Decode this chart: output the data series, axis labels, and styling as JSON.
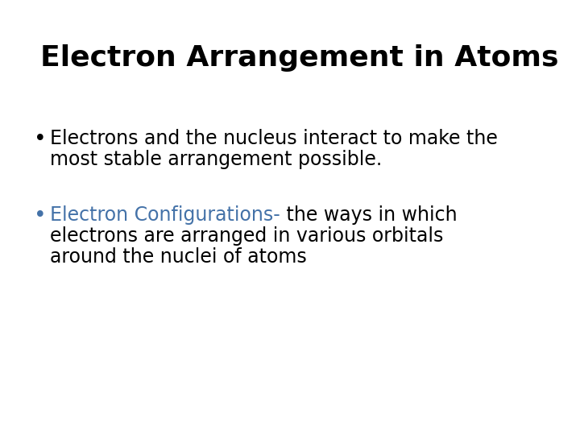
{
  "title": "Electron Arrangement in Atoms",
  "title_fontsize": 26,
  "title_fontweight": "bold",
  "title_color": "#000000",
  "background_color": "#ffffff",
  "bullet1_text_line1": "Electrons and the nucleus interact to make the",
  "bullet1_text_line2": "most stable arrangement possible.",
  "bullet2_part1": "Electron Configurations-",
  "bullet2_line2": "electrons are arranged in various orbitals",
  "bullet2_line3": "around the nuclei of atoms",
  "bullet2_suffix": " the ways in which",
  "bullet_color": "#000000",
  "bullet2_color1": "#4472a8",
  "bullet2_color2": "#000000",
  "bullet_fontsize": 17
}
